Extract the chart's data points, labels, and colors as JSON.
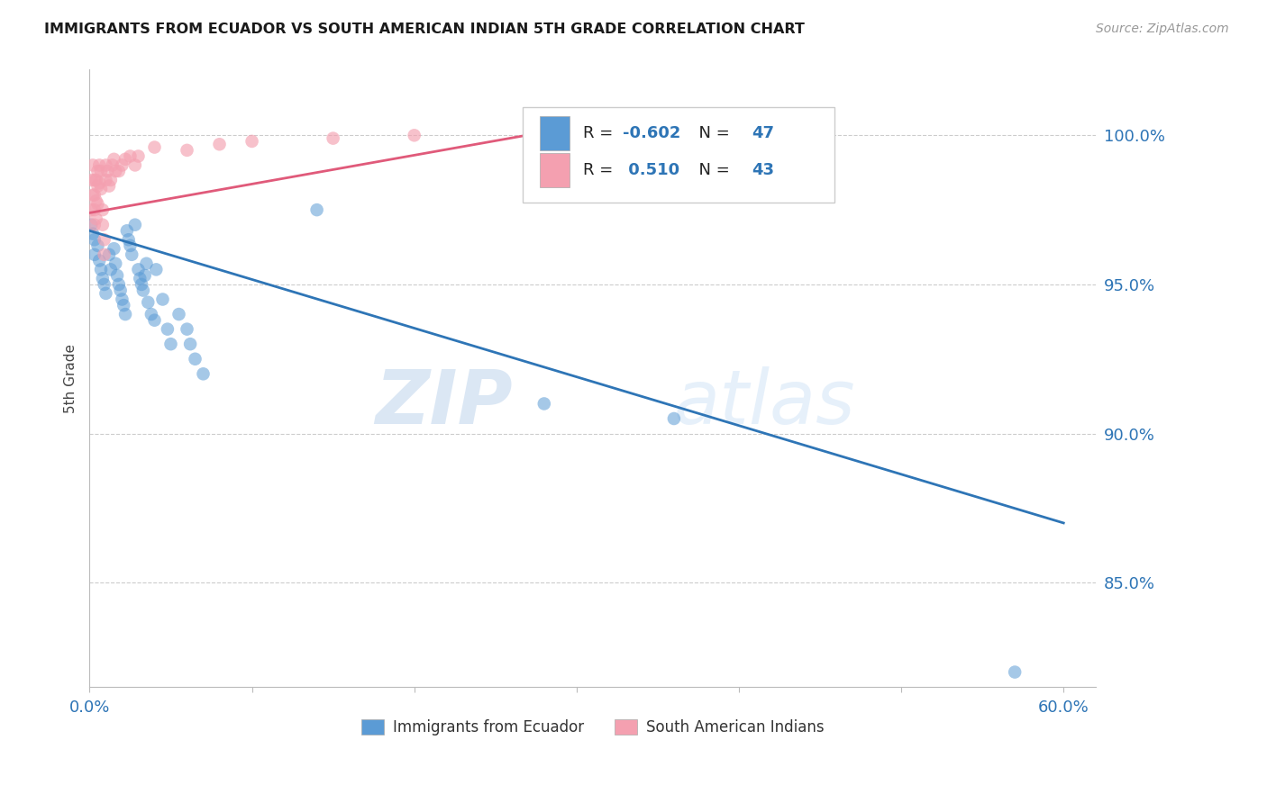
{
  "title": "IMMIGRANTS FROM ECUADOR VS SOUTH AMERICAN INDIAN 5TH GRADE CORRELATION CHART",
  "source": "Source: ZipAtlas.com",
  "ylabel": "5th Grade",
  "legend_label1": "Immigrants from Ecuador",
  "legend_label2": "South American Indians",
  "R1": -0.602,
  "N1": 47,
  "R2": 0.51,
  "N2": 43,
  "color_blue": "#5b9bd5",
  "color_pink": "#f4a0b0",
  "color_blue_dark": "#2e75b6",
  "color_pink_dark": "#e05a7a",
  "color_blue_line": "#2e75b6",
  "color_pink_line": "#e05a7a",
  "xlim": [
    0.0,
    0.62
  ],
  "ylim": [
    0.815,
    1.022
  ],
  "yticks": [
    0.85,
    0.9,
    0.95,
    1.0
  ],
  "ytick_labels": [
    "85.0%",
    "90.0%",
    "95.0%",
    "100.0%"
  ],
  "xticks": [
    0.0,
    0.1,
    0.2,
    0.3,
    0.4,
    0.5,
    0.6
  ],
  "xtick_labels": [
    "0.0%",
    "",
    "",
    "",
    "",
    "",
    "60.0%"
  ],
  "watermark_zip": "ZIP",
  "watermark_atlas": "atlas",
  "blue_scatter_x": [
    0.001,
    0.002,
    0.003,
    0.003,
    0.005,
    0.006,
    0.007,
    0.008,
    0.009,
    0.01,
    0.012,
    0.013,
    0.015,
    0.016,
    0.017,
    0.018,
    0.019,
    0.02,
    0.021,
    0.022,
    0.023,
    0.024,
    0.025,
    0.026,
    0.028,
    0.03,
    0.031,
    0.032,
    0.033,
    0.034,
    0.035,
    0.036,
    0.038,
    0.04,
    0.041,
    0.045,
    0.048,
    0.05,
    0.055,
    0.06,
    0.062,
    0.065,
    0.07,
    0.14,
    0.28,
    0.36,
    0.57
  ],
  "blue_scatter_y": [
    0.97,
    0.967,
    0.965,
    0.96,
    0.963,
    0.958,
    0.955,
    0.952,
    0.95,
    0.947,
    0.96,
    0.955,
    0.962,
    0.957,
    0.953,
    0.95,
    0.948,
    0.945,
    0.943,
    0.94,
    0.968,
    0.965,
    0.963,
    0.96,
    0.97,
    0.955,
    0.952,
    0.95,
    0.948,
    0.953,
    0.957,
    0.944,
    0.94,
    0.938,
    0.955,
    0.945,
    0.935,
    0.93,
    0.94,
    0.935,
    0.93,
    0.925,
    0.92,
    0.975,
    0.91,
    0.905,
    0.82
  ],
  "pink_scatter_x": [
    0.001,
    0.001,
    0.002,
    0.002,
    0.003,
    0.003,
    0.003,
    0.003,
    0.004,
    0.004,
    0.004,
    0.005,
    0.005,
    0.005,
    0.006,
    0.006,
    0.007,
    0.007,
    0.008,
    0.008,
    0.009,
    0.009,
    0.01,
    0.01,
    0.011,
    0.012,
    0.013,
    0.014,
    0.015,
    0.016,
    0.018,
    0.02,
    0.022,
    0.025,
    0.028,
    0.03,
    0.04,
    0.06,
    0.08,
    0.1,
    0.15,
    0.2,
    0.3
  ],
  "pink_scatter_y": [
    0.985,
    0.975,
    0.99,
    0.98,
    0.985,
    0.98,
    0.975,
    0.97,
    0.985,
    0.978,
    0.972,
    0.988,
    0.983,
    0.977,
    0.99,
    0.984,
    0.988,
    0.982,
    0.975,
    0.97,
    0.965,
    0.96,
    0.99,
    0.985,
    0.988,
    0.983,
    0.985,
    0.99,
    0.992,
    0.988,
    0.988,
    0.99,
    0.992,
    0.993,
    0.99,
    0.993,
    0.996,
    0.995,
    0.997,
    0.998,
    0.999,
    1.0,
    0.999
  ],
  "blue_line_x": [
    0.0,
    0.6
  ],
  "blue_line_y": [
    0.968,
    0.87
  ],
  "pink_line_x": [
    0.0,
    0.3
  ],
  "pink_line_y": [
    0.974,
    1.003
  ]
}
